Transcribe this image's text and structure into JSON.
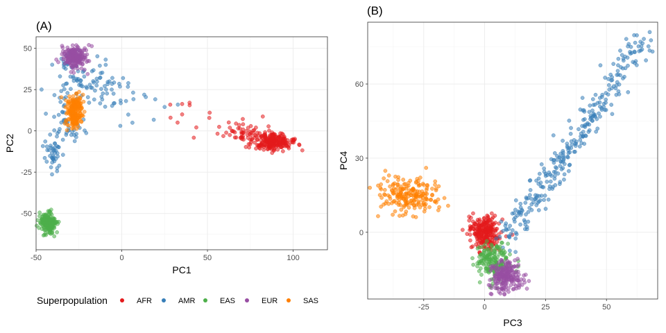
{
  "chart_data": [
    {
      "type": "scatter",
      "panel_tag": "(A)",
      "xlabel": "PC1",
      "ylabel": "PC2",
      "xlim": [
        -50,
        120
      ],
      "ylim": [
        -72,
        57
      ],
      "x_ticks": [
        -50,
        0,
        50,
        100
      ],
      "y_ticks": [
        -50,
        -25,
        0,
        25,
        50
      ],
      "x_tick_labels": [
        "-50",
        "0",
        "50",
        "100"
      ],
      "y_tick_labels": [
        "-50",
        "-25",
        "0",
        "25",
        "50"
      ],
      "grid": true,
      "clusters": [
        {
          "series": "AFR",
          "center": [
            88,
            -7
          ],
          "spread": [
            6,
            2.5
          ],
          "count": 220
        },
        {
          "series": "AFR",
          "center": [
            72,
            -1
          ],
          "spread": [
            7,
            3
          ],
          "count": 60
        },
        {
          "series": "AFR",
          "center": [
            45,
            10
          ],
          "spread": [
            14,
            6
          ],
          "count": 14
        },
        {
          "series": "AMR",
          "center": [
            -18,
            28
          ],
          "spread": [
            10,
            5
          ],
          "count": 70
        },
        {
          "series": "AMR",
          "center": [
            -32,
            5
          ],
          "spread": [
            5,
            8
          ],
          "count": 50
        },
        {
          "series": "AMR",
          "center": [
            -40,
            -15
          ],
          "spread": [
            3,
            6
          ],
          "count": 40
        },
        {
          "series": "AMR",
          "center": [
            5,
            15
          ],
          "spread": [
            12,
            8
          ],
          "count": 20
        },
        {
          "series": "AMR",
          "center": [
            -28,
            40
          ],
          "spread": [
            6,
            5
          ],
          "count": 30
        },
        {
          "series": "EAS",
          "center": [
            -43,
            -56
          ],
          "spread": [
            2.2,
            3.2
          ],
          "count": 200
        },
        {
          "series": "EUR",
          "center": [
            -27,
            45
          ],
          "spread": [
            3.5,
            3.5
          ],
          "count": 200
        },
        {
          "series": "SAS",
          "center": [
            -28,
            12
          ],
          "spread": [
            2.5,
            6
          ],
          "count": 180
        }
      ]
    },
    {
      "type": "scatter",
      "panel_tag": "(B)",
      "xlabel": "PC3",
      "ylabel": "PC4",
      "xlim": [
        -48,
        71
      ],
      "ylim": [
        -27,
        85
      ],
      "x_ticks": [
        -25,
        0,
        25,
        50
      ],
      "y_ticks": [
        0,
        30,
        60
      ],
      "x_tick_labels": [
        "-25",
        "0",
        "25",
        "50"
      ],
      "y_tick_labels": [
        "0",
        "30",
        "60"
      ],
      "grid": true,
      "clusters": [
        {
          "series": "AFR",
          "center": [
            0,
            0
          ],
          "spread": [
            3,
            3.5
          ],
          "count": 260
        },
        {
          "series": "AMR",
          "line": [
            [
              8,
              -3
            ],
            [
              66,
              79
            ]
          ],
          "jitter": [
            2.5,
            3
          ],
          "count": 300
        },
        {
          "series": "EAS",
          "center": [
            3,
            -12
          ],
          "spread": [
            4,
            4
          ],
          "count": 180
        },
        {
          "series": "EUR",
          "center": [
            9,
            -18
          ],
          "spread": [
            3.5,
            3.5
          ],
          "count": 200
        },
        {
          "series": "SAS",
          "center": [
            -32,
            15
          ],
          "spread": [
            6,
            4
          ],
          "count": 200
        }
      ]
    }
  ],
  "legend": {
    "title": "Superpopulation",
    "position": "bottom",
    "items": [
      {
        "label": "AFR",
        "color": "#e41a1c"
      },
      {
        "label": "AMR",
        "color": "#377eb8"
      },
      {
        "label": "EAS",
        "color": "#4daf4a"
      },
      {
        "label": "EUR",
        "color": "#984ea3"
      },
      {
        "label": "SAS",
        "color": "#ff7f00"
      }
    ]
  }
}
